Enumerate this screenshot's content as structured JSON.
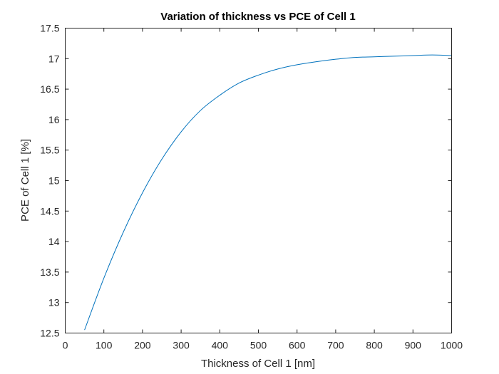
{
  "chart_data": {
    "type": "line",
    "title": "Variation of thickness vs PCE of Cell 1",
    "xlabel": "Thickness of Cell 1 [nm]",
    "ylabel": "PCE of Cell 1 [%]",
    "xlim": [
      0,
      1000
    ],
    "ylim": [
      12.5,
      17.5
    ],
    "xticks": [
      0,
      100,
      200,
      300,
      400,
      500,
      600,
      700,
      800,
      900,
      1000
    ],
    "xtick_labels": [
      "0",
      "100",
      "200",
      "300",
      "400",
      "500",
      "600",
      "700",
      "800",
      "900",
      "1000"
    ],
    "yticks": [
      12.5,
      13,
      13.5,
      14,
      14.5,
      15,
      15.5,
      16,
      16.5,
      17,
      17.5
    ],
    "ytick_labels": [
      "12.5",
      "13",
      "13.5",
      "14",
      "14.5",
      "15",
      "15.5",
      "16",
      "16.5",
      "17",
      "17.5"
    ],
    "grid": false,
    "series": [
      {
        "color": "#0072bd",
        "x": [
          50,
          100,
          150,
          200,
          250,
          300,
          350,
          400,
          450,
          500,
          550,
          600,
          650,
          700,
          750,
          800,
          850,
          900,
          950,
          1000
        ],
        "y": [
          12.55,
          13.4,
          14.15,
          14.8,
          15.35,
          15.8,
          16.15,
          16.4,
          16.6,
          16.73,
          16.83,
          16.9,
          16.95,
          16.99,
          17.02,
          17.03,
          17.04,
          17.05,
          17.06,
          17.05
        ]
      }
    ]
  }
}
